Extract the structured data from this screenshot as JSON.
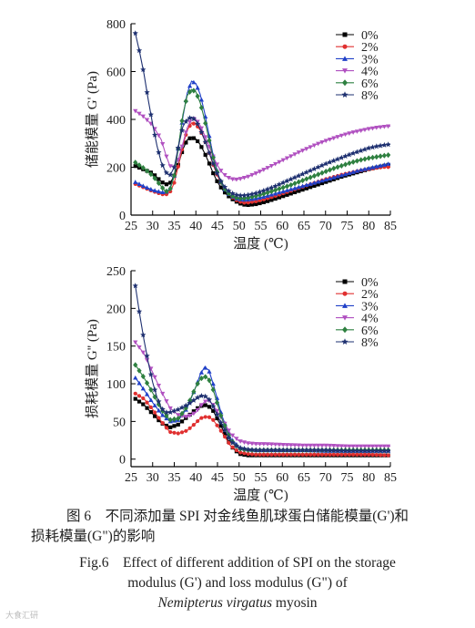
{
  "chart_data": [
    {
      "type": "line",
      "title": "",
      "xlabel": "温度 (℃)",
      "ylabel": "储能模量 G' (Pa)",
      "xlim": [
        25,
        85
      ],
      "ylim": [
        0,
        800
      ],
      "xticks": [
        "25",
        "30",
        "35",
        "40",
        "45",
        "50",
        "55",
        "60",
        "65",
        "70",
        "75",
        "80",
        "85"
      ],
      "yticks": [
        "0",
        "200",
        "400",
        "600",
        "800"
      ],
      "legend_position": "top-right",
      "series": [
        {
          "name": "0%",
          "color": "#000000",
          "marker": "square",
          "x": [
            26,
            28,
            30,
            32,
            33,
            34,
            35,
            36,
            37,
            38,
            39,
            40,
            41,
            42,
            43,
            44,
            45,
            46,
            47,
            48,
            49,
            50,
            51,
            52,
            54,
            56,
            58,
            60,
            62,
            64,
            66,
            68,
            70,
            72,
            74,
            76,
            78,
            80,
            82,
            84,
            85
          ],
          "y": [
            205,
            190,
            175,
            140,
            128,
            132,
            165,
            215,
            275,
            315,
            325,
            318,
            295,
            260,
            220,
            175,
            138,
            110,
            88,
            72,
            60,
            50,
            44,
            42,
            46,
            55,
            66,
            78,
            90,
            102,
            114,
            126,
            138,
            150,
            162,
            172,
            182,
            192,
            200,
            208,
            212
          ]
        },
        {
          "name": "2%",
          "color": "#e03030",
          "marker": "circle",
          "x": [
            26,
            28,
            30,
            32,
            33,
            34,
            35,
            36,
            37,
            38,
            39,
            40,
            41,
            42,
            43,
            44,
            45,
            46,
            47,
            48,
            49,
            50,
            51,
            52,
            54,
            56,
            58,
            60,
            62,
            64,
            66,
            68,
            70,
            72,
            74,
            76,
            78,
            80,
            82,
            84,
            85
          ],
          "y": [
            130,
            115,
            100,
            88,
            85,
            95,
            135,
            210,
            290,
            355,
            385,
            380,
            355,
            315,
            265,
            210,
            165,
            128,
            100,
            80,
            66,
            57,
            52,
            52,
            58,
            67,
            78,
            90,
            102,
            114,
            126,
            138,
            150,
            160,
            170,
            178,
            186,
            192,
            198,
            202,
            200
          ]
        },
        {
          "name": "3%",
          "color": "#2040c8",
          "marker": "triangle-up",
          "x": [
            26,
            28,
            30,
            32,
            33,
            34,
            35,
            36,
            37,
            38,
            39,
            40,
            41,
            42,
            43,
            44,
            45,
            46,
            47,
            48,
            49,
            50,
            51,
            52,
            54,
            56,
            58,
            60,
            62,
            64,
            66,
            68,
            70,
            72,
            74,
            76,
            78,
            80,
            82,
            84,
            85
          ],
          "y": [
            138,
            120,
            105,
            96,
            95,
            110,
            165,
            290,
            410,
            510,
            560,
            550,
            505,
            430,
            340,
            250,
            180,
            128,
            98,
            82,
            72,
            66,
            64,
            65,
            70,
            78,
            88,
            98,
            108,
            118,
            128,
            138,
            148,
            158,
            168,
            178,
            188,
            196,
            204,
            212,
            216
          ]
        },
        {
          "name": "4%",
          "color": "#b050c0",
          "marker": "triangle-down",
          "x": [
            26,
            28,
            30,
            32,
            33,
            34,
            35,
            36,
            37,
            38,
            39,
            40,
            41,
            42,
            43,
            44,
            45,
            46,
            47,
            48,
            49,
            50,
            51,
            52,
            54,
            56,
            58,
            60,
            62,
            64,
            66,
            68,
            70,
            72,
            74,
            76,
            78,
            80,
            82,
            84,
            85
          ],
          "y": [
            435,
            410,
            375,
            315,
            255,
            205,
            200,
            235,
            300,
            365,
            405,
            400,
            375,
            335,
            290,
            245,
            208,
            180,
            162,
            152,
            148,
            150,
            155,
            160,
            175,
            192,
            210,
            228,
            246,
            264,
            280,
            296,
            310,
            322,
            334,
            344,
            352,
            360,
            366,
            370,
            372
          ]
        },
        {
          "name": "6%",
          "color": "#2e8040",
          "marker": "diamond",
          "x": [
            26,
            28,
            30,
            32,
            33,
            34,
            35,
            36,
            37,
            38,
            39,
            40,
            41,
            42,
            43,
            44,
            45,
            46,
            47,
            48,
            49,
            50,
            51,
            52,
            54,
            56,
            58,
            60,
            62,
            64,
            66,
            68,
            70,
            72,
            74,
            76,
            78,
            80,
            82,
            84,
            85
          ],
          "y": [
            220,
            195,
            165,
            120,
            98,
            105,
            165,
            290,
            420,
            500,
            525,
            515,
            470,
            400,
            320,
            240,
            175,
            130,
            100,
            84,
            75,
            70,
            70,
            72,
            80,
            90,
            102,
            114,
            126,
            140,
            154,
            168,
            182,
            196,
            208,
            220,
            230,
            238,
            244,
            250,
            252
          ]
        },
        {
          "name": "8%",
          "color": "#1e3070",
          "marker": "star",
          "x": [
            26,
            27,
            28,
            29,
            30,
            31,
            32,
            33,
            34,
            35,
            36,
            37,
            38,
            39,
            40,
            41,
            42,
            43,
            44,
            45,
            46,
            47,
            48,
            49,
            50,
            51,
            52,
            54,
            56,
            58,
            60,
            62,
            64,
            66,
            68,
            70,
            72,
            74,
            76,
            78,
            80,
            82,
            84,
            85
          ],
          "y": [
            760,
            680,
            590,
            480,
            380,
            290,
            220,
            180,
            165,
            200,
            290,
            370,
            400,
            410,
            395,
            360,
            315,
            265,
            215,
            170,
            135,
            110,
            95,
            86,
            82,
            82,
            84,
            92,
            104,
            118,
            134,
            150,
            166,
            182,
            198,
            214,
            228,
            242,
            256,
            268,
            280,
            288,
            294,
            296
          ]
        }
      ]
    },
    {
      "type": "line",
      "title": "",
      "xlabel": "温度 (℃)",
      "ylabel": "损耗模量 G'' (Pa)",
      "xlim": [
        25,
        85
      ],
      "ylim": [
        -10,
        250
      ],
      "xticks": [
        "25",
        "30",
        "35",
        "40",
        "45",
        "50",
        "55",
        "60",
        "65",
        "70",
        "75",
        "80",
        "85"
      ],
      "yticks": [
        "0",
        "50",
        "100",
        "150",
        "200",
        "250"
      ],
      "legend_position": "top-right",
      "series": [
        {
          "name": "0%",
          "color": "#000000",
          "marker": "square",
          "x": [
            26,
            28,
            30,
            32,
            34,
            36,
            38,
            40,
            41,
            42,
            43,
            44,
            46,
            48,
            50,
            52,
            54,
            56,
            60,
            65,
            70,
            75,
            80,
            85
          ],
          "y": [
            80,
            72,
            60,
            48,
            42,
            46,
            56,
            66,
            70,
            72,
            70,
            64,
            42,
            18,
            7,
            5,
            5,
            5,
            5,
            5,
            5,
            5,
            5,
            5
          ]
        },
        {
          "name": "2%",
          "color": "#e03030",
          "marker": "circle",
          "x": [
            26,
            28,
            30,
            32,
            34,
            36,
            38,
            40,
            41,
            42,
            43,
            44,
            46,
            48,
            50,
            52,
            54,
            56,
            60,
            65,
            70,
            75,
            80,
            85
          ],
          "y": [
            87,
            80,
            66,
            50,
            36,
            34,
            38,
            48,
            54,
            56,
            56,
            52,
            36,
            18,
            9,
            7,
            6,
            6,
            6,
            6,
            6,
            6,
            6,
            5
          ]
        },
        {
          "name": "3%",
          "color": "#2040c8",
          "marker": "triangle-up",
          "x": [
            26,
            28,
            30,
            32,
            34,
            36,
            38,
            40,
            41,
            42,
            43,
            44,
            46,
            48,
            50,
            52,
            54,
            56,
            60,
            65,
            70,
            75,
            80,
            85
          ],
          "y": [
            108,
            92,
            75,
            60,
            50,
            52,
            68,
            96,
            112,
            122,
            118,
            100,
            58,
            28,
            16,
            13,
            12,
            12,
            12,
            12,
            11,
            11,
            11,
            11
          ]
        },
        {
          "name": "4%",
          "color": "#b050c0",
          "marker": "triangle-down",
          "x": [
            26,
            28,
            30,
            32,
            34,
            36,
            38,
            40,
            41,
            42,
            43,
            44,
            46,
            48,
            50,
            52,
            54,
            56,
            60,
            65,
            70,
            75,
            80,
            85
          ],
          "y": [
            155,
            140,
            115,
            90,
            68,
            58,
            56,
            62,
            70,
            76,
            78,
            72,
            54,
            34,
            24,
            21,
            20,
            20,
            19,
            18,
            18,
            17,
            17,
            17
          ]
        },
        {
          "name": "6%",
          "color": "#2e8040",
          "marker": "diamond",
          "x": [
            26,
            28,
            30,
            32,
            34,
            36,
            38,
            40,
            41,
            42,
            43,
            44,
            46,
            48,
            50,
            52,
            54,
            56,
            60,
            65,
            70,
            75,
            80,
            85
          ],
          "y": [
            125,
            108,
            88,
            66,
            52,
            54,
            70,
            96,
            106,
            110,
            106,
            92,
            54,
            26,
            14,
            12,
            12,
            12,
            12,
            12,
            12,
            12,
            12,
            12
          ]
        },
        {
          "name": "8%",
          "color": "#1e3070",
          "marker": "star",
          "x": [
            26,
            27,
            28,
            29,
            30,
            31,
            32,
            33,
            34,
            35,
            36,
            38,
            40,
            41,
            42,
            43,
            44,
            46,
            48,
            50,
            52,
            54,
            56,
            60,
            65,
            70,
            75,
            80,
            85
          ],
          "y": [
            230,
            192,
            158,
            128,
            102,
            82,
            68,
            62,
            62,
            64,
            66,
            72,
            80,
            84,
            84,
            80,
            70,
            46,
            24,
            15,
            13,
            12,
            12,
            12,
            12,
            12,
            11,
            11,
            11
          ]
        }
      ]
    }
  ],
  "caption": {
    "cn_line1": "图 6　不同添加量 SPI 对金线鱼肌球蛋白储能模量(G')和",
    "cn_line2": "损耗模量(G\")的影响",
    "en_line1": "Fig.6　Effect of different addition of SPI on the storage",
    "en_line2": "modulus (G') and loss modulus (G\") of",
    "en_line3_italic": "Nemipterus virgatus",
    "en_line3_rest": " myosin"
  },
  "watermark": "大食汇研"
}
